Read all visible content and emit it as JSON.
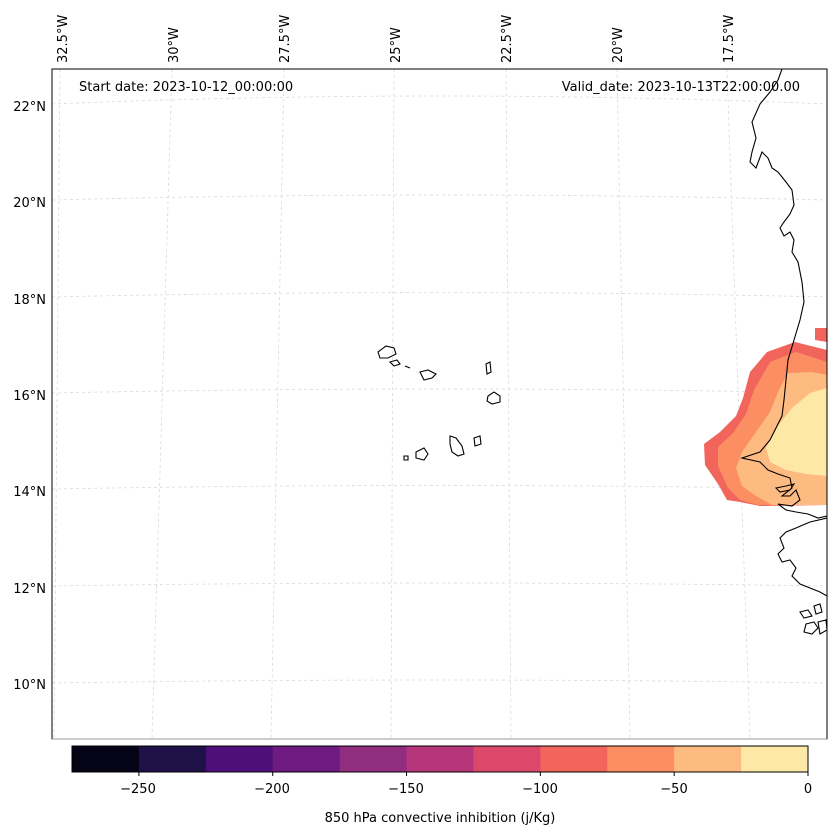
{
  "map": {
    "start_label": "Start date: 2023-10-12_00:00:00",
    "valid_label": "Valid_date: 2023-10-13T22:00:00.00",
    "lon_labels": [
      "32.5°W",
      "30°W",
      "27.5°W",
      "25°W",
      "22.5°W",
      "20°W",
      "17.5°W"
    ],
    "lat_labels": [
      "22°N",
      "20°N",
      "18°N",
      "16°N",
      "14°N",
      "12°N",
      "10°N"
    ],
    "gridline_color": "#d9d9d9",
    "coastline_color": "#000000"
  },
  "colorbar": {
    "label": "850 hPa convective inhibition (j/Kg)",
    "tick_labels": [
      "−250",
      "−200",
      "−150",
      "−100",
      "−50",
      "0"
    ],
    "bounds": [
      -275,
      -250,
      -225,
      -200,
      -175,
      -150,
      -125,
      -100,
      -75,
      -50,
      -25,
      0
    ],
    "colors": [
      "#050416",
      "#1f1147",
      "#4f0f7a",
      "#6e1a80",
      "#912d7f",
      "#b5367a",
      "#dc4869",
      "#f2655c",
      "#fc8e64",
      "#febb81",
      "#fde8a6"
    ]
  },
  "chart_data": {
    "type": "heatmap",
    "title": "",
    "variable": "850 hPa convective inhibition",
    "units": "j/Kg",
    "colorbar_range": [
      -275,
      0
    ],
    "levels": [
      -275,
      -250,
      -225,
      -200,
      -175,
      -150,
      -125,
      -100,
      -75,
      -50,
      -25,
      0
    ],
    "lon_ticks": [
      -32.5,
      -30,
      -27.5,
      -25,
      -22.5,
      -20,
      -17.5
    ],
    "lat_ticks": [
      22,
      20,
      18,
      16,
      14,
      12,
      10
    ],
    "annotations": [
      "Start date: 2023-10-12_00:00:00",
      "Valid_date: 2023-10-13T22:00:00.00"
    ],
    "filled_regions": [
      {
        "level_range": [
          -100,
          -75
        ],
        "location": "west coast of Africa, ~13.5–16.5°N"
      },
      {
        "level_range": [
          -75,
          -50
        ],
        "location": "coast off Senegal, ~13.7–16.7°N"
      },
      {
        "level_range": [
          -50,
          -25
        ],
        "location": "Senegal coast, ~13.8–16°N"
      },
      {
        "level_range": [
          -25,
          0
        ],
        "location": "inland Senegal, ~14–15.8°N"
      }
    ]
  }
}
